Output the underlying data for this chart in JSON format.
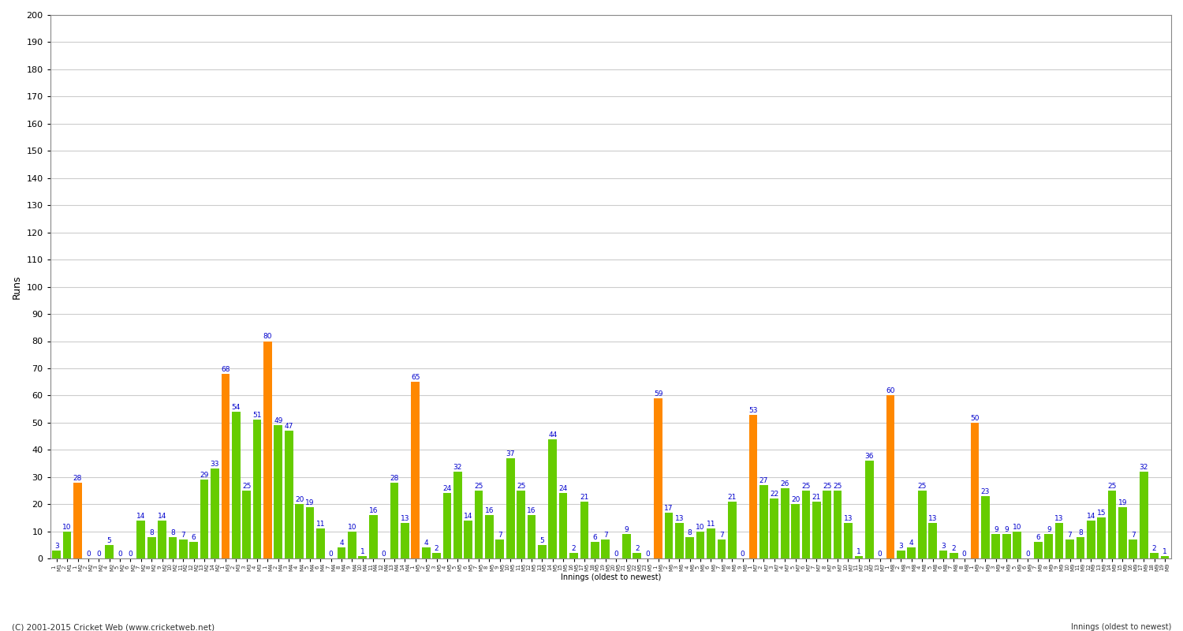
{
  "title": "",
  "ylabel": "Runs",
  "xlabel": "Innings (oldest to newest)",
  "background_color": "#ffffff",
  "grid_color": "#cccccc",
  "bar_width": 0.8,
  "ylim": [
    0,
    200
  ],
  "yticks": [
    0,
    10,
    20,
    30,
    40,
    50,
    60,
    70,
    80,
    90,
    100,
    110,
    120,
    130,
    140,
    150,
    160,
    170,
    180,
    190,
    200
  ],
  "values": [
    3,
    10,
    28,
    0,
    0,
    5,
    0,
    0,
    14,
    8,
    14,
    8,
    7,
    6,
    29,
    33,
    68,
    54,
    25,
    51,
    80,
    49,
    47,
    20,
    19,
    11,
    0,
    4,
    10,
    1,
    16,
    0,
    28,
    13,
    65,
    4,
    2,
    24,
    32,
    14,
    25,
    16,
    7,
    37,
    25,
    16,
    5,
    44,
    24,
    2,
    21,
    6,
    7,
    0,
    9,
    2,
    0,
    59,
    17,
    13,
    8,
    10,
    11,
    7,
    21,
    0,
    53,
    27,
    22,
    26,
    20,
    25,
    21,
    25,
    25,
    13,
    1,
    36,
    0,
    60,
    3,
    4,
    25,
    13,
    3,
    2,
    0,
    50,
    23,
    9,
    9,
    10,
    0,
    6,
    9,
    13,
    7,
    8,
    14,
    15,
    25,
    19,
    7,
    32,
    2,
    1
  ],
  "orange_indices": [
    2,
    16,
    20,
    34,
    57,
    66,
    79,
    87
  ],
  "green_color": "#66cc00",
  "orange_color": "#ff8800",
  "label_color": "#0000cc",
  "label_fontsize": 6.5,
  "footer": "(C) 2001-2015 Cricket Web (www.cricketweb.net)",
  "title_fontsize": 11,
  "ylabel_fontsize": 9,
  "xtick_fontsize": 5
}
